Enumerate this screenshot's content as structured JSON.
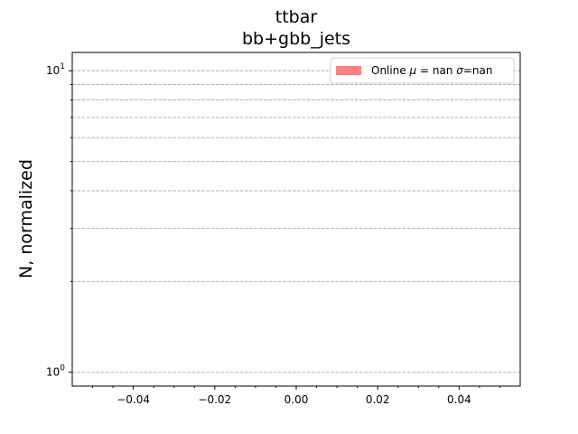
{
  "chart_data": {
    "type": "bar",
    "title_line1": "ttbar",
    "title_line2": "bb+gbb_jets",
    "xlabel": "",
    "ylabel": "N, normalized",
    "yscale": "log",
    "xlim": [
      -0.055,
      0.055
    ],
    "ylim": [
      0.9,
      11.5
    ],
    "x_ticks_major": [
      -0.04,
      -0.02,
      0.0,
      0.02,
      0.04
    ],
    "x_tick_labels": [
      "−0.04",
      "−0.02",
      "0.00",
      "0.02",
      "0.04"
    ],
    "y_major_ticks": [
      {
        "value": 1,
        "base": "10",
        "exp": "0"
      },
      {
        "value": 10,
        "base": "10",
        "exp": "1"
      }
    ],
    "y_grid_values": [
      1,
      2,
      3,
      4,
      5,
      6,
      7,
      8,
      9,
      10
    ],
    "grid": "y-dashed",
    "legend": {
      "placement": "top-right",
      "entries": [
        {
          "color": "#ff7f7f",
          "prefix": "Online ",
          "mu_symbol": "μ",
          "mu_value": " = nan ",
          "sigma_symbol": "σ",
          "sigma_value": "=nan"
        }
      ]
    },
    "series": []
  }
}
